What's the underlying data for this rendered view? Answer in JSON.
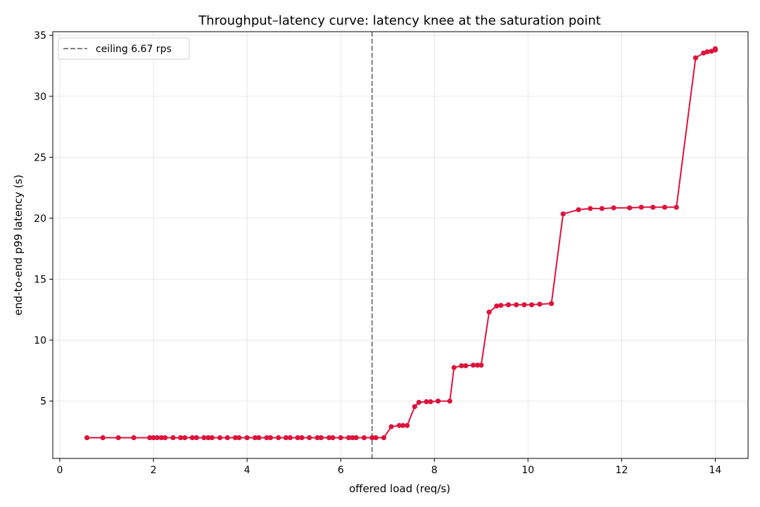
{
  "chart_data": {
    "type": "line",
    "title": "Throughput–latency curve: latency knee at the saturation point",
    "xlabel": "offered load (req/s)",
    "ylabel": "end-to-end p99 latency (s)",
    "xlim": [
      -0.15,
      14.7
    ],
    "ylim": [
      0.3,
      35.3
    ],
    "xticks": [
      0,
      2,
      4,
      6,
      8,
      10,
      12,
      14
    ],
    "yticks": [
      5,
      10,
      15,
      20,
      25,
      30,
      35
    ],
    "grid": true,
    "legend_position": "top-left",
    "series": [
      {
        "color": "#dc143c",
        "x": [
          0.58,
          0.92,
          1.25,
          1.58,
          1.92,
          2.0,
          2.08,
          2.17,
          2.25,
          2.42,
          2.58,
          2.67,
          2.83,
          2.92,
          3.08,
          3.17,
          3.25,
          3.42,
          3.58,
          3.75,
          3.83,
          4.0,
          4.17,
          4.25,
          4.42,
          4.5,
          4.67,
          4.83,
          4.92,
          5.08,
          5.17,
          5.33,
          5.5,
          5.58,
          5.75,
          5.83,
          6.0,
          6.17,
          6.25,
          6.33,
          6.5,
          6.67,
          6.75,
          6.92,
          7.08,
          7.25,
          7.33,
          7.42,
          7.58,
          7.67,
          7.83,
          7.92,
          8.08,
          8.33,
          8.42,
          8.58,
          8.67,
          8.83,
          8.92,
          9.0,
          9.17,
          9.33,
          9.42,
          9.58,
          9.75,
          9.92,
          10.08,
          10.25,
          10.5,
          10.75,
          11.08,
          11.33,
          11.58,
          11.83,
          12.17,
          12.42,
          12.67,
          12.92,
          13.17,
          13.58,
          13.75,
          13.83,
          13.92,
          14.0,
          14.0
        ],
        "y": [
          2.0,
          2.0,
          2.0,
          2.0,
          2.0,
          2.0,
          2.0,
          2.0,
          2.0,
          2.0,
          2.0,
          2.0,
          2.0,
          2.0,
          2.0,
          2.0,
          2.0,
          2.0,
          2.0,
          2.0,
          2.0,
          2.0,
          2.0,
          2.0,
          2.0,
          2.0,
          2.0,
          2.0,
          2.0,
          2.0,
          2.0,
          2.0,
          2.0,
          2.0,
          2.0,
          2.0,
          2.0,
          2.0,
          2.0,
          2.0,
          2.0,
          2.0,
          2.0,
          2.0,
          2.9,
          3.0,
          3.0,
          3.0,
          4.55,
          4.9,
          4.95,
          4.95,
          5.0,
          5.0,
          7.75,
          7.9,
          7.9,
          7.95,
          7.95,
          7.95,
          12.3,
          12.8,
          12.85,
          12.9,
          12.9,
          12.9,
          12.9,
          12.95,
          13.0,
          20.35,
          20.7,
          20.8,
          20.8,
          20.85,
          20.85,
          20.9,
          20.9,
          20.9,
          20.9,
          33.15,
          33.55,
          33.65,
          33.7,
          33.8,
          33.9
        ]
      }
    ],
    "reference_lines": [
      {
        "axis": "x",
        "value": 6.67,
        "label": "ceiling 6.67 rps",
        "color": "#808080",
        "style": "dashed"
      }
    ]
  }
}
